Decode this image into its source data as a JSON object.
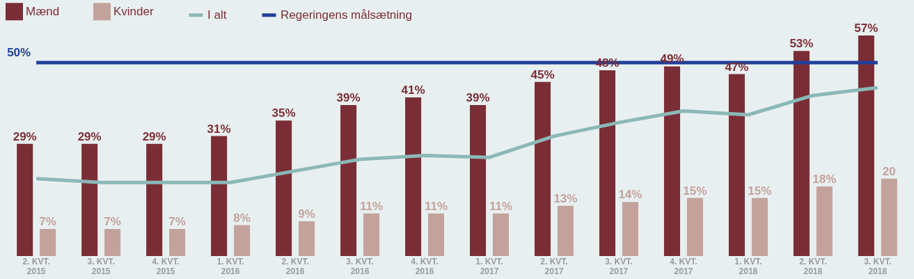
{
  "chart_data": {
    "type": "bar",
    "categories": [
      "2. KVT.\n2015",
      "3. KVT.\n2015",
      "4. KVT.\n2015",
      "1. KVT.\n2016",
      "2. KVT.\n2016",
      "3. KVT.\n2016",
      "4. KVT.\n2016",
      "1. KVT.\n2017",
      "2. KVT.\n2017",
      "3. KVT.\n2017",
      "4. KVT.\n2017",
      "1. KVT.\n2018",
      "2. KVT.\n2018",
      "3. KVT.\n2018"
    ],
    "series": [
      {
        "name": "Mænd",
        "color": "#7b2d35",
        "values": [
          29,
          29,
          29,
          31,
          35,
          39,
          41,
          39,
          45,
          48,
          49,
          47,
          53,
          57
        ],
        "value_labels": [
          "29%",
          "29%",
          "29%",
          "31%",
          "35%",
          "39%",
          "41%",
          "39%",
          "45%",
          "48%",
          "49%",
          "47%",
          "53%",
          "57%"
        ]
      },
      {
        "name": "Kvinder",
        "color": "#c4a29c",
        "values": [
          7,
          7,
          7,
          8,
          9,
          11,
          11,
          11,
          13,
          14,
          15,
          15,
          18,
          20
        ],
        "value_labels": [
          "7%",
          "7%",
          "7%",
          "8%",
          "9%",
          "11%",
          "11%",
          "11%",
          "13%",
          "14%",
          "15%",
          "15%",
          "18%",
          "20"
        ]
      },
      {
        "name": "I alt",
        "type": "line",
        "color": "#8bb8b8",
        "values": [
          20,
          19,
          19,
          19,
          22,
          25,
          26,
          25.5,
          31,
          34.5,
          37.5,
          36.5,
          41.5,
          43.5
        ]
      },
      {
        "name": "Regeringens målsætning",
        "type": "line",
        "color": "#1f3f99",
        "values": [
          50,
          50,
          50,
          50,
          50,
          50,
          50,
          50,
          50,
          50,
          50,
          50,
          50,
          50
        ],
        "value_labels": [
          "50%",
          null,
          null,
          null,
          null,
          null,
          null,
          null,
          null,
          null,
          null,
          null,
          null,
          null
        ]
      }
    ],
    "tick_labels": "x",
    "legend": "top left"
  }
}
